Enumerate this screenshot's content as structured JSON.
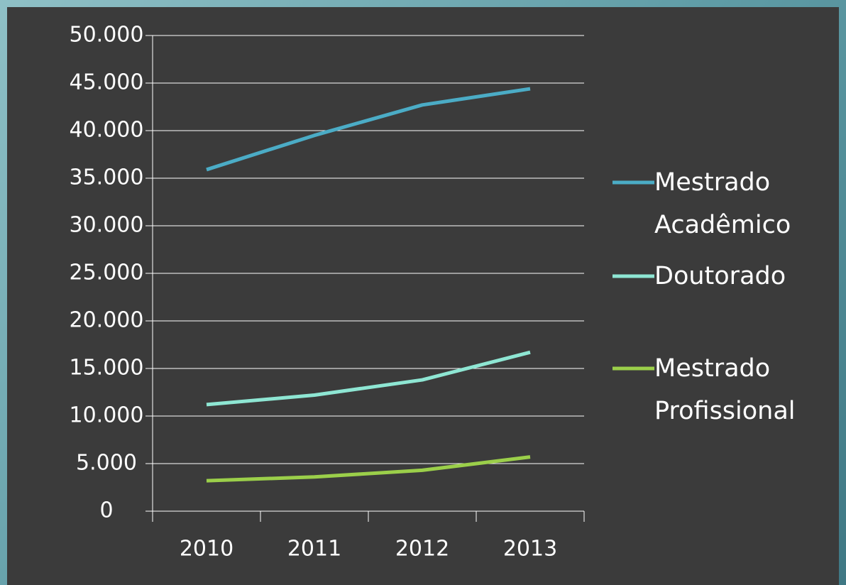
{
  "chart_data": {
    "type": "line",
    "categories": [
      "2010",
      "2011",
      "2012",
      "2013"
    ],
    "series": [
      {
        "name": "Mestrado Acadêmico",
        "color": "#4bacc6",
        "values": [
          35900,
          39500,
          42700,
          44400
        ]
      },
      {
        "name": "Doutorado",
        "color": "#8ee6d3",
        "values": [
          11200,
          12200,
          13800,
          16700
        ]
      },
      {
        "name": "Mestrado Profissional",
        "color": "#9bcf4a",
        "values": [
          3200,
          3600,
          4300,
          5700
        ]
      }
    ],
    "ylim": [
      0,
      50000
    ],
    "yticks": [
      0,
      {
        "value": 5000,
        "label": "5.000"
      },
      {
        "value": 10000,
        "label": "10.000"
      },
      {
        "value": 15000,
        "label": "15.000"
      },
      {
        "value": 20000,
        "label": "20.000"
      },
      {
        "value": 25000,
        "label": "25.000"
      },
      {
        "value": 30000,
        "label": "30.000"
      },
      {
        "value": 35000,
        "label": "35.000"
      },
      {
        "value": 40000,
        "label": "40.000"
      },
      {
        "value": 45000,
        "label": "45.000"
      },
      {
        "value": 50000,
        "label": "50.000"
      }
    ],
    "grid": true,
    "legend": "right"
  }
}
